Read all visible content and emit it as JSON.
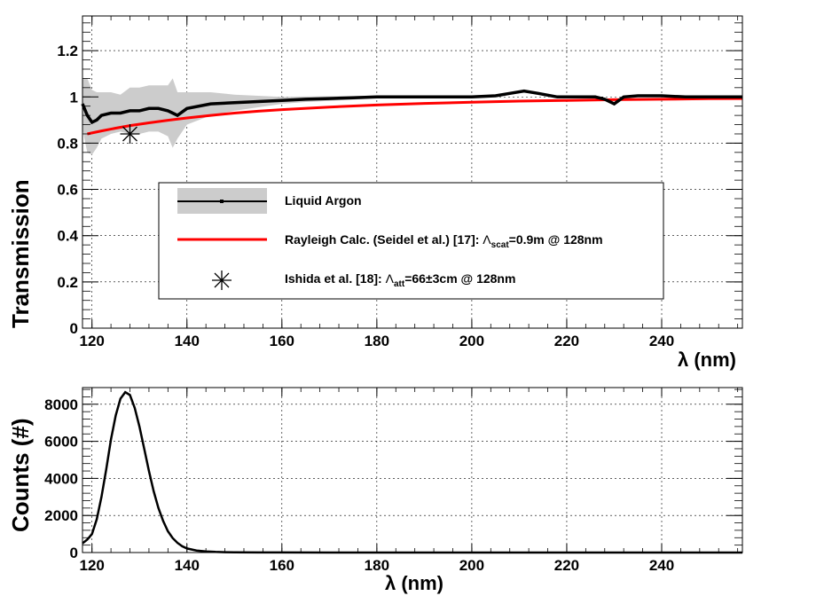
{
  "chart_data": [
    {
      "type": "line",
      "title": "",
      "xlabel": "λ (nm)",
      "ylabel": "Transmission",
      "xlim": [
        118,
        257
      ],
      "ylim": [
        0,
        1.35
      ],
      "xticks": [
        120,
        140,
        160,
        180,
        200,
        220,
        240
      ],
      "yticks": [
        0,
        0.2,
        0.4,
        0.6,
        0.8,
        1,
        1.2
      ],
      "xtick_labels": [
        "120",
        "140",
        "160",
        "180",
        "200",
        "220",
        "240"
      ],
      "ytick_labels": [
        "0",
        "0.2",
        "0.4",
        "0.6",
        "0.8",
        "1",
        "1.2"
      ],
      "grid": true,
      "legend_placement": "center-left",
      "series": [
        {
          "name": "Liquid Argon",
          "kind": "line-with-error-band",
          "color": "#000000",
          "band_color": "#cccccc",
          "x": [
            118,
            119,
            120,
            121,
            122,
            124,
            126,
            128,
            130,
            132,
            134,
            136,
            137,
            138,
            140,
            145,
            150,
            155,
            160,
            165,
            170,
            175,
            180,
            185,
            190,
            195,
            200,
            205,
            208,
            211,
            214,
            218,
            222,
            226,
            228,
            230,
            232,
            235,
            240,
            245,
            250,
            257
          ],
          "values": [
            0.97,
            0.92,
            0.89,
            0.9,
            0.92,
            0.93,
            0.93,
            0.94,
            0.94,
            0.95,
            0.95,
            0.94,
            0.93,
            0.92,
            0.95,
            0.97,
            0.975,
            0.98,
            0.985,
            0.99,
            0.993,
            0.996,
            1.0,
            1.0,
            1.0,
            1.0,
            1.0,
            1.005,
            1.015,
            1.025,
            1.015,
            1.0,
            1.0,
            1.0,
            0.99,
            0.97,
            1.0,
            1.005,
            1.005,
            1.0,
            1.0,
            1.0
          ],
          "error": [
            0.11,
            0.16,
            0.14,
            0.12,
            0.1,
            0.09,
            0.08,
            0.1,
            0.1,
            0.1,
            0.1,
            0.11,
            0.15,
            0.1,
            0.07,
            0.05,
            0.035,
            0.025,
            0.015,
            0.012,
            0.01,
            0.008,
            0.006,
            0.005,
            0.005,
            0.005,
            0.005,
            0.005,
            0.005,
            0.005,
            0.005,
            0.005,
            0.005,
            0.005,
            0.005,
            0.005,
            0.005,
            0.005,
            0.005,
            0.005,
            0.005,
            0.005
          ]
        },
        {
          "name": "Rayleigh Calc. (Seidel et al.) [17]: Λscat=0.9m @ 128nm",
          "kind": "line",
          "color": "#ff0000",
          "x": [
            119,
            122,
            125,
            128,
            132,
            136,
            140,
            145,
            150,
            155,
            160,
            170,
            180,
            190,
            200,
            210,
            220,
            230,
            240,
            250,
            257
          ],
          "values": [
            0.84,
            0.853,
            0.865,
            0.876,
            0.888,
            0.899,
            0.909,
            0.92,
            0.93,
            0.938,
            0.945,
            0.956,
            0.965,
            0.972,
            0.977,
            0.982,
            0.985,
            0.988,
            0.99,
            0.992,
            0.993
          ]
        },
        {
          "name": "Ishida et al. [18]: Λatt=66±3cm @ 128nm",
          "kind": "marker-star",
          "color": "#000000",
          "x": [
            128
          ],
          "values": [
            0.84
          ]
        }
      ],
      "legend": [
        {
          "key": "lar",
          "text": "Liquid Argon"
        },
        {
          "key": "rayleigh",
          "pre": "Rayleigh Calc. (Seidel et al.) [17]: ",
          "sym": "Λ",
          "sub": "scat",
          "post": "=0.9m @ 128nm"
        },
        {
          "key": "ishida",
          "pre": "Ishida et al. [18]: ",
          "sym": "Λ",
          "sub": "att",
          "post": "=66±3cm @ 128nm"
        }
      ]
    },
    {
      "type": "line",
      "title": "",
      "xlabel": "λ (nm)",
      "ylabel": "Counts (#)",
      "xlim": [
        118,
        257
      ],
      "ylim": [
        0,
        8900
      ],
      "xticks": [
        120,
        140,
        160,
        180,
        200,
        220,
        240
      ],
      "yticks": [
        0,
        2000,
        4000,
        6000,
        8000
      ],
      "xtick_labels": [
        "120",
        "140",
        "160",
        "180",
        "200",
        "220",
        "240"
      ],
      "ytick_labels": [
        "0",
        "2000",
        "4000",
        "6000",
        "8000"
      ],
      "grid": true,
      "series": [
        {
          "name": "",
          "color": "#000000",
          "x": [
            118,
            119,
            120,
            121,
            122,
            123,
            124,
            125,
            126,
            127,
            128,
            129,
            130,
            131,
            132,
            133,
            134,
            135,
            136,
            137,
            138,
            139,
            140,
            142,
            144,
            146,
            148,
            150,
            155,
            160,
            170,
            180,
            200,
            220,
            240,
            257
          ],
          "values": [
            500,
            700,
            1000,
            1800,
            3000,
            4500,
            6100,
            7400,
            8300,
            8650,
            8500,
            7800,
            6800,
            5600,
            4400,
            3300,
            2400,
            1700,
            1150,
            780,
            520,
            340,
            220,
            110,
            60,
            35,
            20,
            12,
            5,
            3,
            1,
            1,
            0,
            0,
            0,
            0
          ]
        }
      ]
    }
  ]
}
